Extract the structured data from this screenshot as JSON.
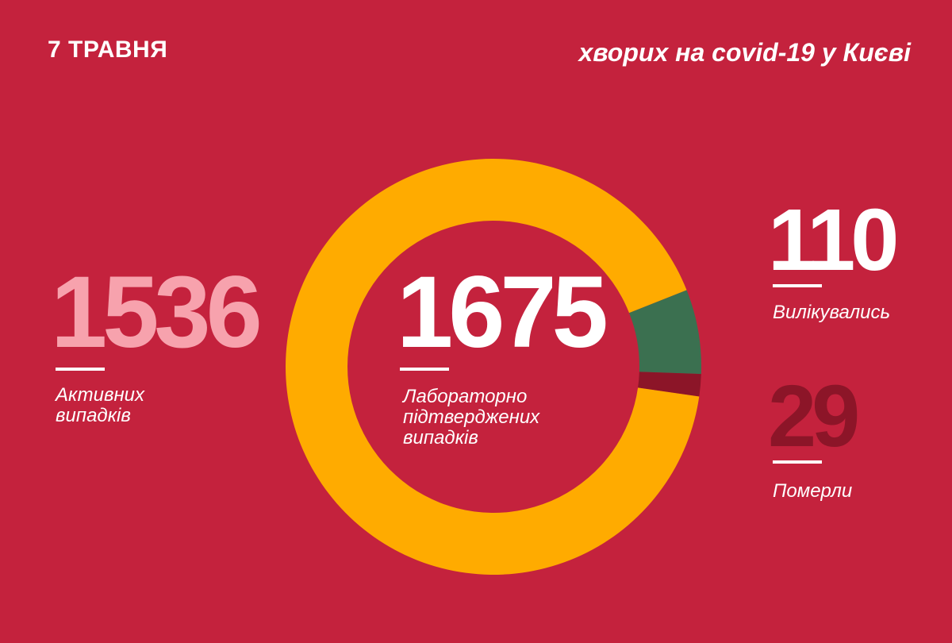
{
  "header": {
    "date": "7 ТРАВНЯ",
    "title": "хворих на covid-19 у Києві"
  },
  "stats": {
    "active": {
      "value": "1536",
      "label_line1": "Активних",
      "label_line2": "випадків"
    },
    "confirmed": {
      "value": "1675",
      "label_line1": "Лабораторно",
      "label_line2": "підтверджених",
      "label_line3": "випадків"
    },
    "recovered": {
      "value": "110",
      "label": "Вилікувались"
    },
    "died": {
      "value": "29",
      "label": "Померли"
    }
  },
  "colors": {
    "background": "#c4223d",
    "active": "#ffab00",
    "recovered": "#3b7050",
    "died": "#8c1528",
    "active_number": "#f7a2ad"
  },
  "chart_data": {
    "type": "pie",
    "variant": "donut",
    "total": 1675,
    "slices": [
      {
        "name": "Активних випадків",
        "value": 1536,
        "color": "#ffab00"
      },
      {
        "name": "Вилікувались",
        "value": 110,
        "color": "#3b7050"
      },
      {
        "name": "Померли",
        "value": 29,
        "color": "#8c1528"
      }
    ]
  }
}
